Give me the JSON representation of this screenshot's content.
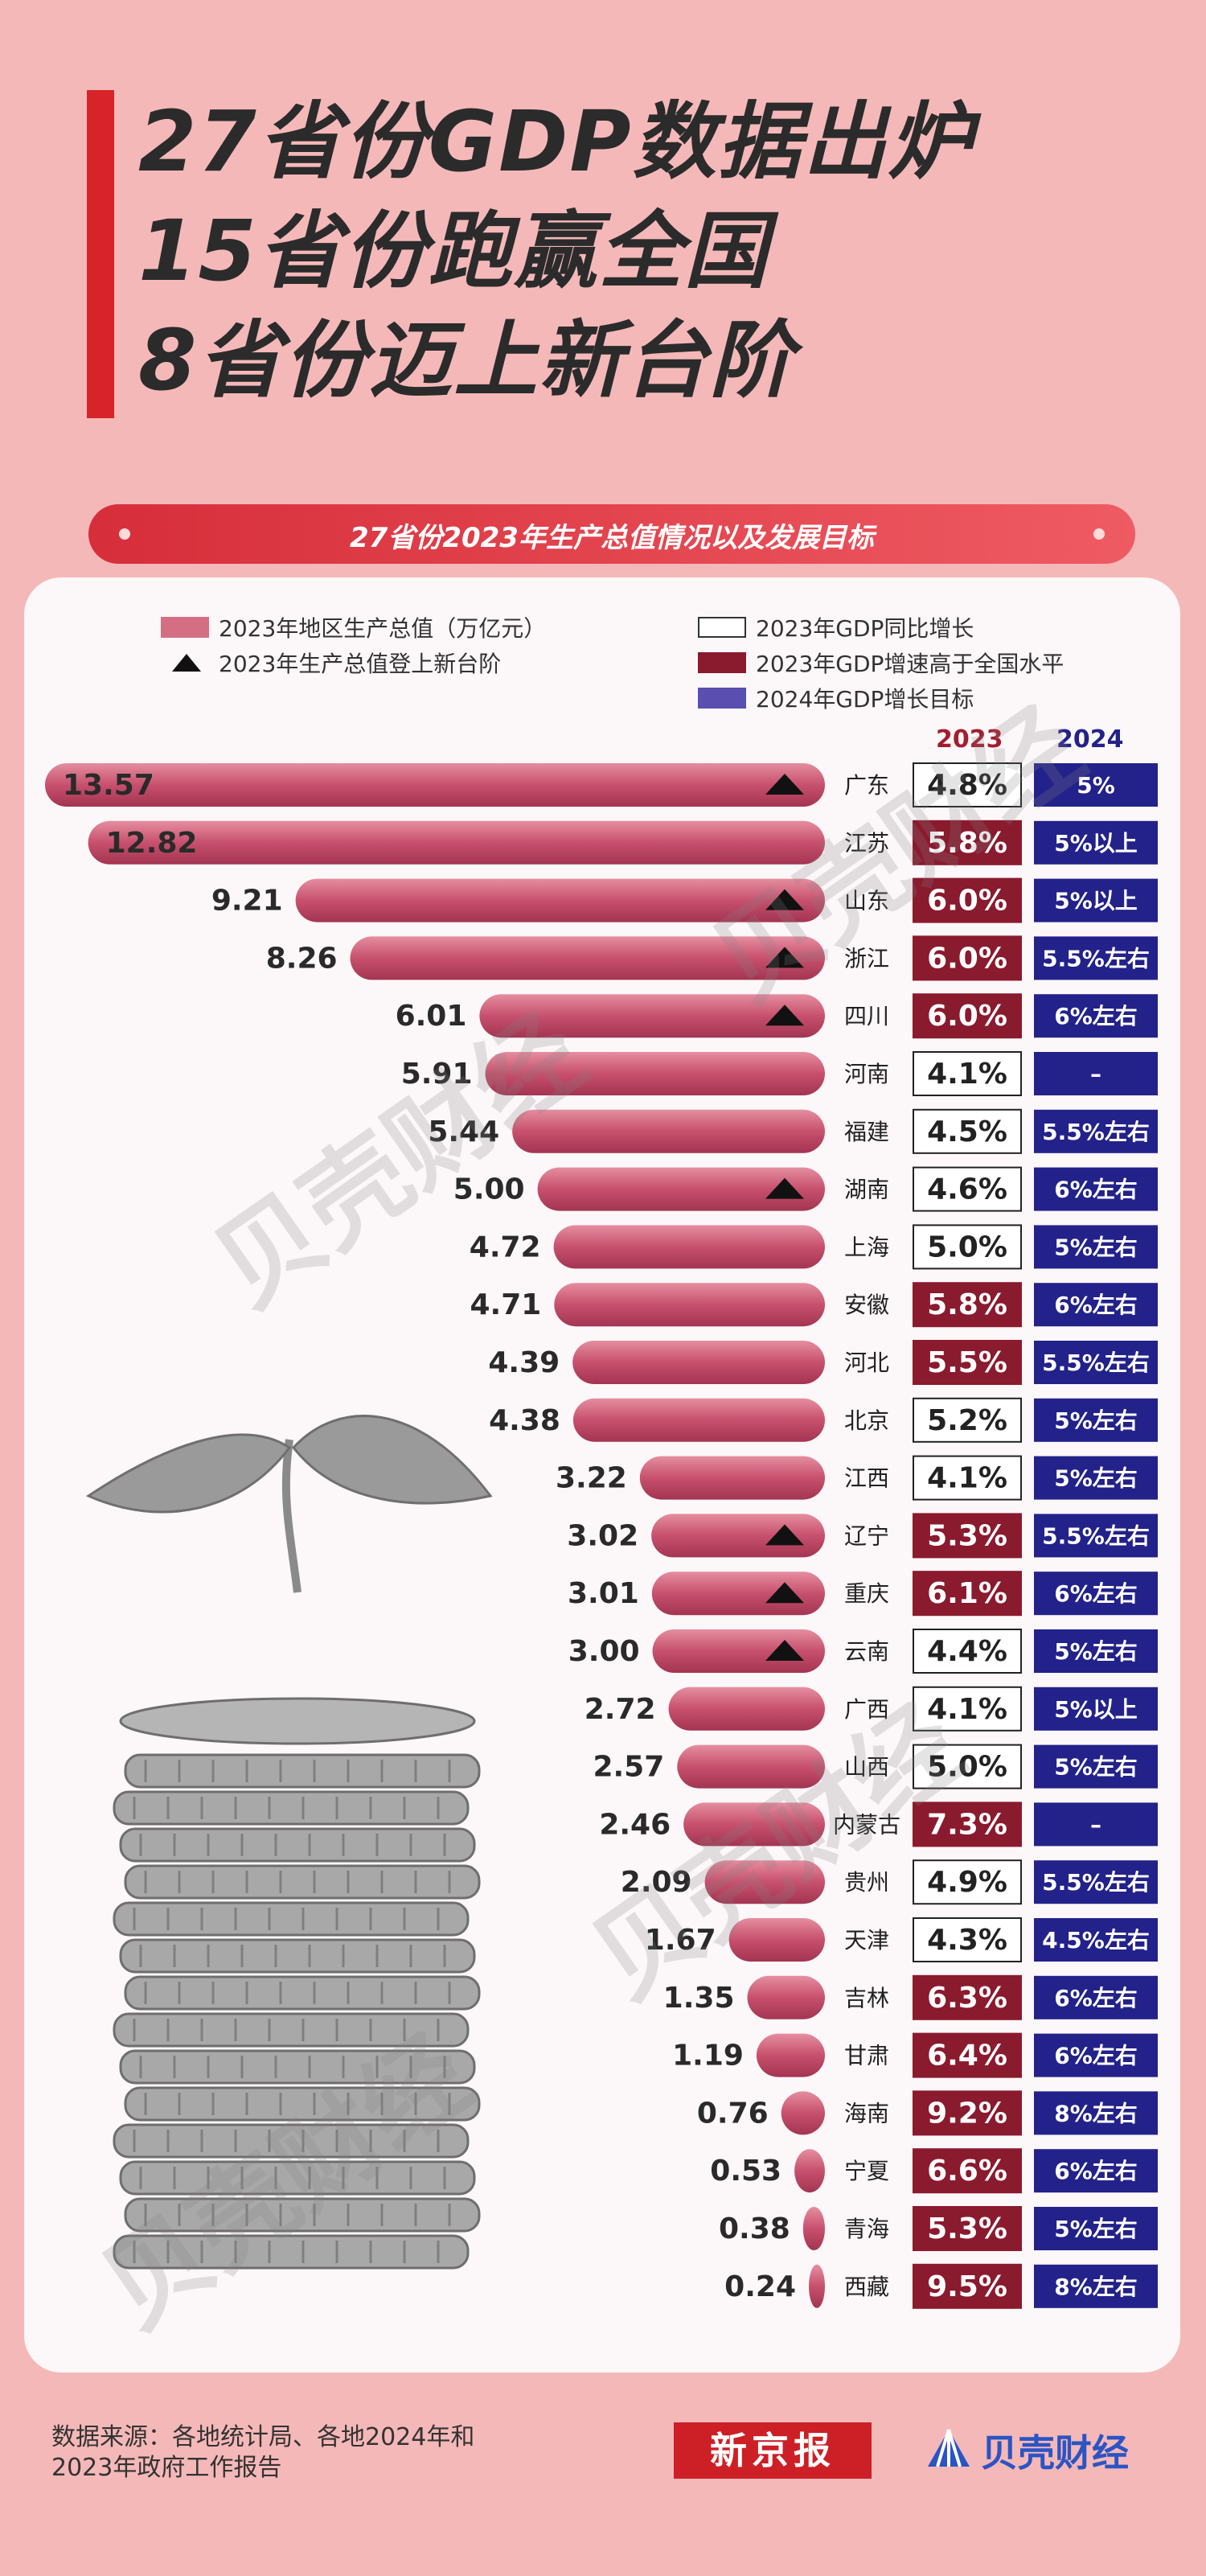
{
  "title": {
    "line1": "27省份GDP数据出炉",
    "line2": "15省份跑赢全国",
    "line3": "8省份迈上新台阶"
  },
  "banner_title": "27省份2023年生产总值情况以及发展目标",
  "legend": {
    "gdp": "2023年地区生产总值（万亿元）",
    "new_step": "2023年生产总值登上新台阶",
    "growth": "2023年GDP同比增长",
    "growth_above": "2023年GDP增速高于全国水平",
    "target": "2024年GDP增长目标"
  },
  "column_headers": {
    "y2023": "2023",
    "y2024": "2024"
  },
  "watermark": "贝壳财经",
  "source": {
    "line1": "数据来源：各地统计局、各地2024年和",
    "line2": "2023年政府工作报告"
  },
  "logos": {
    "xjb": "新京报",
    "bkcj": "贝壳财经"
  },
  "colors": {
    "bar": "#c04462",
    "above_national": "#8a1a2e",
    "target_box": "#23228a",
    "header_2023": "#a31d2e",
    "header_2024": "#23228a"
  },
  "chart_data": {
    "type": "bar",
    "orientation": "horizontal",
    "categories": [
      "广东",
      "江苏",
      "山东",
      "浙江",
      "四川",
      "河南",
      "福建",
      "湖南",
      "上海",
      "安徽",
      "河北",
      "北京",
      "江西",
      "辽宁",
      "重庆",
      "云南",
      "广西",
      "山西",
      "内蒙古",
      "贵州",
      "天津",
      "吉林",
      "甘肃",
      "海南",
      "宁夏",
      "青海",
      "西藏"
    ],
    "series": [
      {
        "name": "2023年地区生产总值（万亿元）",
        "values": [
          13.57,
          12.82,
          9.21,
          8.26,
          6.01,
          5.91,
          5.44,
          5.0,
          4.72,
          4.71,
          4.39,
          4.38,
          3.22,
          3.02,
          3.01,
          3.0,
          2.72,
          2.57,
          2.46,
          2.09,
          1.67,
          1.35,
          1.19,
          0.76,
          0.53,
          0.38,
          0.24
        ],
        "labels": [
          "13.57",
          "12.82",
          "9.21",
          "8.26",
          "6.01",
          "5.91",
          "5.44",
          "5.00",
          "4.72",
          "4.71",
          "4.39",
          "4.38",
          "3.22",
          "3.02",
          "3.01",
          "3.00",
          "2.72",
          "2.57",
          "2.46",
          "2.09",
          "1.67",
          "1.35",
          "1.19",
          "0.76",
          "0.53",
          "0.38",
          "0.24"
        ]
      },
      {
        "name": "2023年GDP同比增长",
        "values": [
          "4.8%",
          "5.8%",
          "6.0%",
          "6.0%",
          "6.0%",
          "4.1%",
          "4.5%",
          "4.6%",
          "5.0%",
          "5.8%",
          "5.5%",
          "5.2%",
          "4.1%",
          "5.3%",
          "6.1%",
          "4.4%",
          "4.1%",
          "5.0%",
          "7.3%",
          "4.9%",
          "4.3%",
          "6.3%",
          "6.4%",
          "9.2%",
          "6.6%",
          "5.3%",
          "9.5%"
        ]
      },
      {
        "name": "2024年GDP增长目标",
        "values": [
          "5%",
          "5%以上",
          "5%以上",
          "5.5%左右",
          "6%左右",
          "–",
          "5.5%左右",
          "6%左右",
          "5%左右",
          "6%左右",
          "5.5%左右",
          "5%左右",
          "5%左右",
          "5.5%左右",
          "6%左右",
          "5%左右",
          "5%以上",
          "5%左右",
          "–",
          "5.5%左右",
          "4.5%左右",
          "6%左右",
          "6%左右",
          "8%左右",
          "6%左右",
          "5%左右",
          "8%左右"
        ]
      }
    ],
    "above_national": [
      false,
      true,
      true,
      true,
      true,
      false,
      false,
      false,
      false,
      true,
      true,
      false,
      false,
      true,
      true,
      false,
      false,
      false,
      true,
      false,
      false,
      true,
      true,
      true,
      true,
      true,
      true
    ],
    "new_step": [
      true,
      false,
      true,
      true,
      true,
      false,
      false,
      true,
      false,
      false,
      false,
      false,
      false,
      true,
      true,
      true,
      false,
      false,
      false,
      false,
      false,
      false,
      false,
      false,
      false,
      false,
      false
    ],
    "xlim": [
      0,
      13.57
    ]
  }
}
